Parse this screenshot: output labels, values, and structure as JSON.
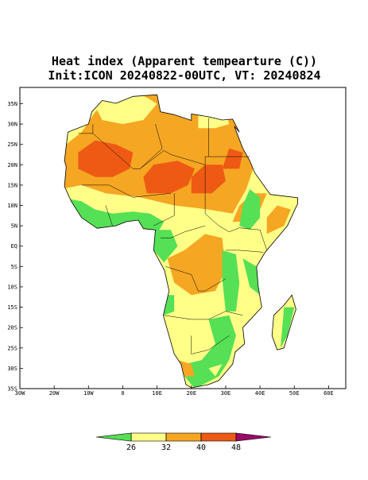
{
  "title": "Heat index (Apparent tempearture (C))",
  "subtitle": "Init:ICON 20240822-00UTC, VT: 20240824",
  "map": {
    "xlim": [
      -30,
      65
    ],
    "ylim": [
      -35,
      39
    ],
    "xticks": [
      {
        "value": -30,
        "label": "30W"
      },
      {
        "value": -20,
        "label": "20W"
      },
      {
        "value": -10,
        "label": "10W"
      },
      0,
      {
        "value": 10,
        "label": "10E"
      },
      {
        "value": 20,
        "label": "20E"
      },
      {
        "value": 30,
        "label": "30E"
      },
      {
        "value": 40,
        "label": "40E"
      },
      {
        "value": 50,
        "label": "50E"
      },
      {
        "value": 60,
        "label": "60E"
      }
    ],
    "yticks": [
      {
        "value": -35,
        "label": "35S"
      },
      {
        "value": -30,
        "label": "30S"
      },
      {
        "value": -25,
        "label": "25S"
      },
      {
        "value": -20,
        "label": "20S"
      },
      {
        "value": -15,
        "label": "15S"
      },
      {
        "value": -10,
        "label": "10S"
      },
      {
        "value": -5,
        "label": "5S"
      },
      {
        "value": 0,
        "label": "EQ"
      },
      {
        "value": 5,
        "label": "5N"
      },
      {
        "value": 10,
        "label": "10N"
      },
      {
        "value": 15,
        "label": "15N"
      },
      {
        "value": 20,
        "label": "20N"
      },
      {
        "value": 25,
        "label": "25N"
      },
      {
        "value": 30,
        "label": "30N"
      },
      {
        "value": 35,
        "label": "35N"
      }
    ]
  },
  "colorbar": {
    "ticks": [
      26,
      32,
      40,
      48
    ],
    "colors": [
      "#55e055",
      "#ffff88",
      "#f5a623",
      "#ee5a14",
      "#9a0a66"
    ]
  }
}
